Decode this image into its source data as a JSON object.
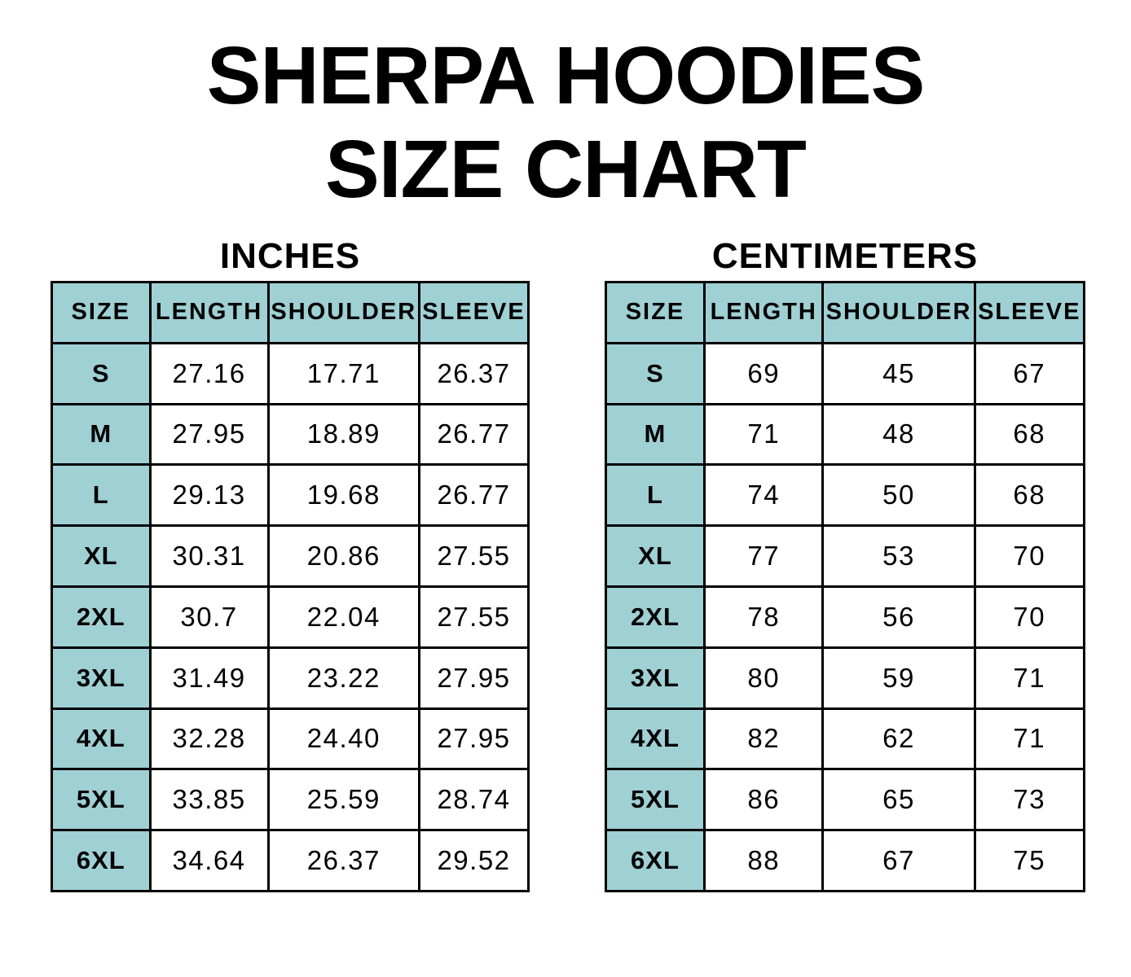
{
  "title": {
    "line1": "SHERPA HOODIES",
    "line2": "SIZE CHART"
  },
  "colors": {
    "teal": "#9fd0d4",
    "border": "#000000",
    "text": "#000000",
    "background": "#ffffff"
  },
  "chart_data": [
    {
      "type": "table",
      "title": "INCHES",
      "columns": [
        "SIZE",
        "LENGTH",
        "SHOULDER",
        "SLEEVE"
      ],
      "rows": [
        [
          "S",
          "27.16",
          "17.71",
          "26.37"
        ],
        [
          "M",
          "27.95",
          "18.89",
          "26.77"
        ],
        [
          "L",
          "29.13",
          "19.68",
          "26.77"
        ],
        [
          "XL",
          "30.31",
          "20.86",
          "27.55"
        ],
        [
          "2XL",
          "30.7",
          "22.04",
          "27.55"
        ],
        [
          "3XL",
          "31.49",
          "23.22",
          "27.95"
        ],
        [
          "4XL",
          "32.28",
          "24.40",
          "27.95"
        ],
        [
          "5XL",
          "33.85",
          "25.59",
          "28.74"
        ],
        [
          "6XL",
          "34.64",
          "26.37",
          "29.52"
        ]
      ]
    },
    {
      "type": "table",
      "title": "CENTIMETERS",
      "columns": [
        "SIZE",
        "LENGTH",
        "SHOULDER",
        "SLEEVE"
      ],
      "rows": [
        [
          "S",
          "69",
          "45",
          "67"
        ],
        [
          "M",
          "71",
          "48",
          "68"
        ],
        [
          "L",
          "74",
          "50",
          "68"
        ],
        [
          "XL",
          "77",
          "53",
          "70"
        ],
        [
          "2XL",
          "78",
          "56",
          "70"
        ],
        [
          "3XL",
          "80",
          "59",
          "71"
        ],
        [
          "4XL",
          "82",
          "62",
          "71"
        ],
        [
          "5XL",
          "86",
          "65",
          "73"
        ],
        [
          "6XL",
          "88",
          "67",
          "75"
        ]
      ]
    }
  ]
}
